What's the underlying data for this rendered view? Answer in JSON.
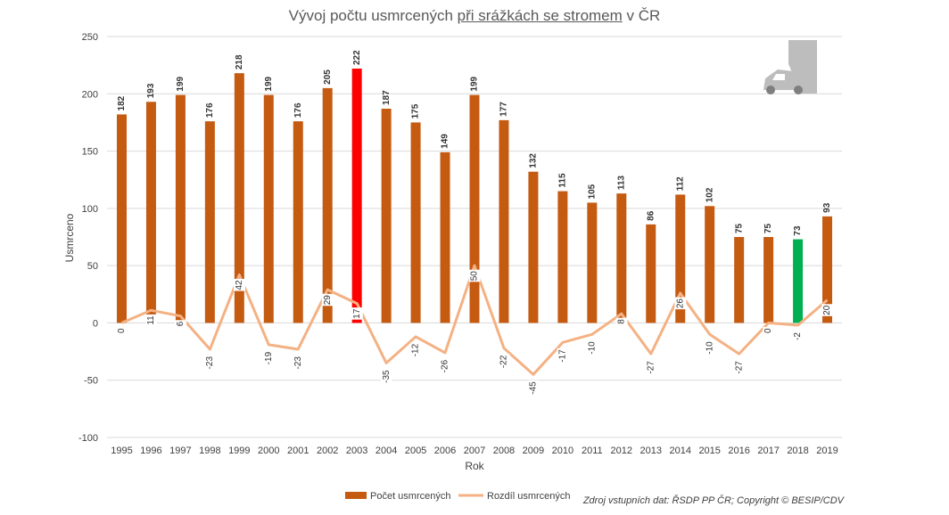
{
  "title": {
    "part1": "Vývoj počtu usmrcených ",
    "part2": "při srážkách se stromem",
    "part3": " v ČR"
  },
  "source_note": "Zdroj vstupních dat: ŘSDP PP ČR; Copyright © BESIP/CDV",
  "colors": {
    "bar": "#C55A11",
    "highlight_max": "#FF0000",
    "highlight_min": "#00B050",
    "line": "#F4B183",
    "grid": "#D9D9D9"
  },
  "chart_data": {
    "type": "bar",
    "categories": [
      "1995",
      "1996",
      "1997",
      "1998",
      "1999",
      "2000",
      "2001",
      "2002",
      "2003",
      "2004",
      "2005",
      "2006",
      "2007",
      "2008",
      "2009",
      "2010",
      "2011",
      "2012",
      "2013",
      "2014",
      "2015",
      "2016",
      "2017",
      "2018",
      "2019"
    ],
    "series": [
      {
        "name": "Počet usmrcených",
        "type": "bar",
        "values": [
          182,
          193,
          199,
          176,
          218,
          199,
          176,
          205,
          222,
          187,
          175,
          149,
          199,
          177,
          132,
          115,
          105,
          113,
          86,
          112,
          102,
          75,
          75,
          73,
          93
        ],
        "highlight": {
          "2003": "#FF0000",
          "2018": "#00B050"
        }
      },
      {
        "name": "Rozdíl usmrcených",
        "type": "line",
        "values": [
          0,
          11,
          6,
          -23,
          42,
          -19,
          -23,
          29,
          17,
          -35,
          -12,
          -26,
          50,
          -22,
          -45,
          -17,
          -10,
          8,
          -27,
          26,
          -10,
          -27,
          0,
          -2,
          20
        ]
      }
    ],
    "xlabel": "Rok",
    "ylabel": "Usmrceno",
    "ylim": [
      -100,
      250
    ],
    "yticks": [
      -100,
      -50,
      0,
      50,
      100,
      150,
      200,
      250
    ],
    "grid": true,
    "legend_position": "bottom"
  }
}
